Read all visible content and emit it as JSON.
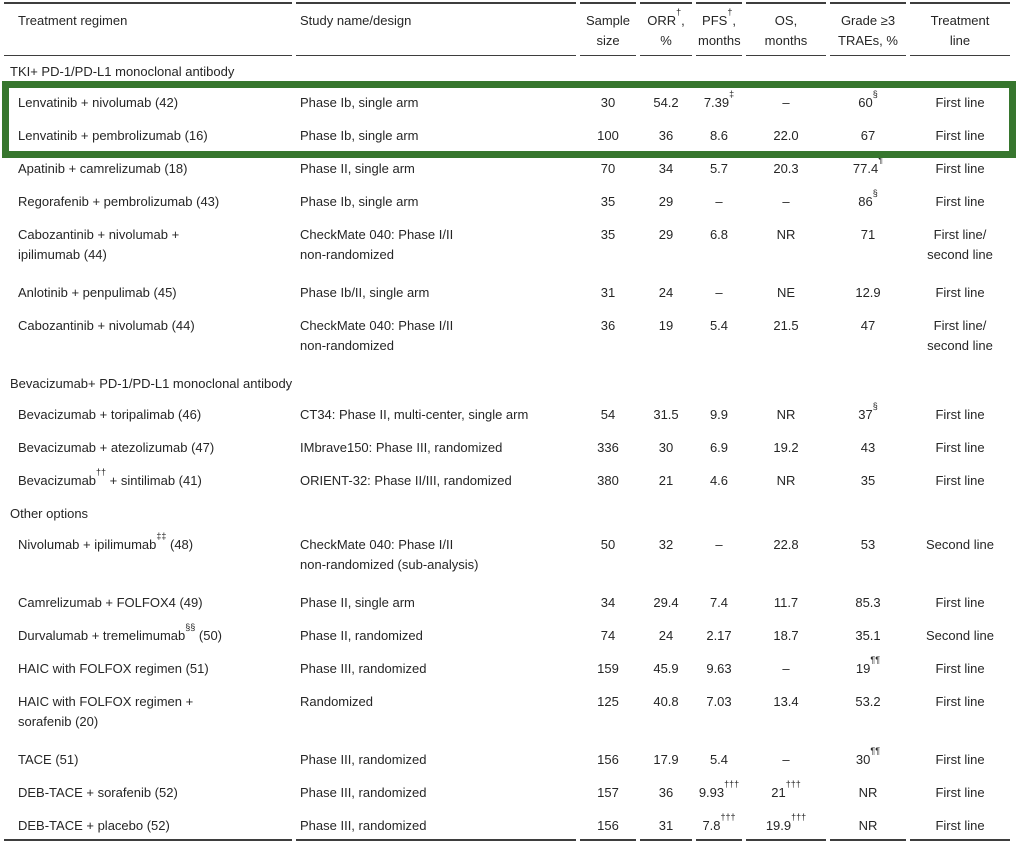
{
  "highlight": {
    "color": "#37762e"
  },
  "header": {
    "columns": [
      "Treatment regimen",
      "Study name/design",
      "Sample\nsize",
      "ORR^{†},\n%",
      "PFS^{†},\nmonths",
      "OS,\nmonths",
      "Grade ≥3\nTRAEs, %",
      "Treatment\nline"
    ]
  },
  "rows": [
    {
      "type": "section",
      "label": "TKI+ PD-1/PD-L1 monoclonal antibody"
    },
    {
      "type": "data",
      "highlight": true,
      "cells": [
        "Lenvatinib + nivolumab (42)",
        "Phase Ib, single arm",
        "30",
        "54.2",
        "7.39^{‡}",
        "–",
        "60^{§}",
        "First line"
      ]
    },
    {
      "type": "data",
      "highlight": true,
      "cells": [
        "Lenvatinib + pembrolizumab (16)",
        "Phase Ib, single arm",
        "100",
        "36",
        "8.6",
        "22.0",
        "67",
        "First line"
      ]
    },
    {
      "type": "data",
      "cells": [
        "Apatinib + camrelizumab (18)",
        "Phase II, single arm",
        "70",
        "34",
        "5.7",
        "20.3",
        "77.4^{¶}",
        "First line"
      ]
    },
    {
      "type": "data",
      "cells": [
        "Regorafenib + pembrolizumab (43)",
        "Phase Ib, single arm",
        "35",
        "29",
        "–",
        "–",
        "86^{§}",
        "First line"
      ]
    },
    {
      "type": "data",
      "cells": [
        "Cabozantinib + nivolumab +\nipilimumab (44)",
        "CheckMate 040: Phase I/II\nnon-randomized",
        "35",
        "29",
        "6.8",
        "NR",
        "71",
        "First line/\nsecond line"
      ]
    },
    {
      "type": "data",
      "cells": [
        "Anlotinib + penpulimab (45)",
        "Phase Ib/II, single arm",
        "31",
        "24",
        "–",
        "NE",
        "12.9",
        "First line"
      ]
    },
    {
      "type": "data",
      "cells": [
        "Cabozantinib + nivolumab (44)",
        "CheckMate 040: Phase I/II\nnon-randomized",
        "36",
        "19",
        "5.4",
        "21.5",
        "47",
        "First line/\nsecond line"
      ]
    },
    {
      "type": "section",
      "label": "Bevacizumab+ PD-1/PD-L1 monoclonal antibody"
    },
    {
      "type": "data",
      "cells": [
        "Bevacizumab + toripalimab (46)",
        "CT34: Phase II, multi-center, single arm",
        "54",
        "31.5",
        "9.9",
        "NR",
        "37^{§}",
        "First line"
      ]
    },
    {
      "type": "data",
      "cells": [
        "Bevacizumab + atezolizumab (47)",
        "IMbrave150: Phase III, randomized",
        "336",
        "30",
        "6.9",
        "19.2",
        "43",
        "First line"
      ]
    },
    {
      "type": "data",
      "cells": [
        "Bevacizumab^{††} + sintilimab (41)",
        "ORIENT-32: Phase II/III, randomized",
        "380",
        "21",
        "4.6",
        "NR",
        "35",
        "First line"
      ]
    },
    {
      "type": "section",
      "label": "Other options"
    },
    {
      "type": "data",
      "cells": [
        "Nivolumab + ipilimumab^{‡‡} (48)",
        "CheckMate 040: Phase I/II\nnon-randomized (sub-analysis)",
        "50",
        "32",
        "–",
        "22.8",
        "53",
        "Second line"
      ]
    },
    {
      "type": "data",
      "cells": [
        "Camrelizumab + FOLFOX4 (49)",
        "Phase II, single arm",
        "34",
        "29.4",
        "7.4",
        "11.7",
        "85.3",
        "First line"
      ]
    },
    {
      "type": "data",
      "cells": [
        "Durvalumab + tremelimumab^{§§} (50)",
        "Phase II, randomized",
        "74",
        "24",
        "2.17",
        "18.7",
        "35.1",
        "Second line"
      ]
    },
    {
      "type": "data",
      "cells": [
        "HAIC with FOLFOX regimen (51)",
        "Phase III, randomized",
        "159",
        "45.9",
        "9.63",
        "–",
        "19^{¶¶}",
        "First line"
      ]
    },
    {
      "type": "data",
      "cells": [
        "HAIC with FOLFOX regimen +\nsorafenib (20)",
        "Randomized",
        "125",
        "40.8",
        "7.03",
        "13.4",
        "53.2",
        "First line"
      ]
    },
    {
      "type": "data",
      "cells": [
        "TACE (51)",
        "Phase III, randomized",
        "156",
        "17.9",
        "5.4",
        "–",
        "30^{¶¶}",
        "First line"
      ]
    },
    {
      "type": "data",
      "cells": [
        "DEB-TACE + sorafenib (52)",
        "Phase III, randomized",
        "157",
        "36",
        "9.93^{†††}",
        "21^{†††}",
        "NR",
        "First line"
      ]
    },
    {
      "type": "data",
      "cells": [
        "DEB-TACE + placebo (52)",
        "Phase III, randomized",
        "156",
        "31",
        "7.8^{†††}",
        "19.9^{†††}",
        "NR",
        "First line"
      ]
    }
  ]
}
